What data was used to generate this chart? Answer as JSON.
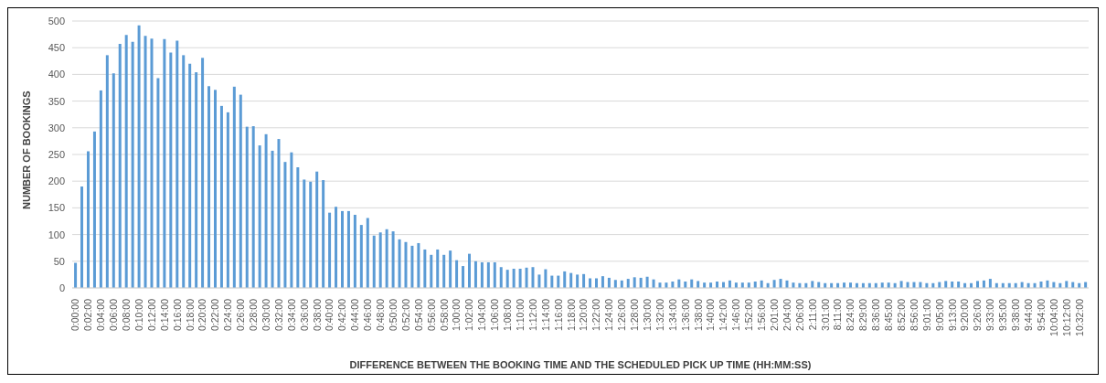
{
  "chart_data": {
    "type": "bar",
    "xlabel": "DIFFERENCE BETWEEN THE BOOKING TIME AND THE SCHEDULED PICK UP TIME (HH:MM:SS)",
    "ylabel": "NUMBER OF BOOKINGS",
    "categories": [
      "0:00:00",
      null,
      "0:02:00",
      null,
      "0:04:00",
      null,
      "0:06:00",
      null,
      "0:08:00",
      null,
      "0:10:00",
      null,
      "0:12:00",
      null,
      "0:14:00",
      null,
      "0:16:00",
      null,
      "0:18:00",
      null,
      "0:20:00",
      null,
      "0:22:00",
      null,
      "0:24:00",
      null,
      "0:26:00",
      null,
      "0:28:00",
      null,
      "0:30:00",
      null,
      "0:32:00",
      null,
      "0:34:00",
      null,
      "0:36:00",
      null,
      "0:38:00",
      null,
      "0:40:00",
      null,
      "0:42:00",
      null,
      "0:44:00",
      null,
      "0:46:00",
      null,
      "0:48:00",
      null,
      "0:50:00",
      null,
      "0:52:00",
      null,
      "0:54:00",
      null,
      "0:56:00",
      null,
      "0:58:00",
      null,
      "1:00:00",
      null,
      "1:02:00",
      null,
      "1:04:00",
      null,
      "1:06:00",
      null,
      "1:08:00",
      null,
      "1:10:00",
      null,
      "1:12:00",
      null,
      "1:14:00",
      null,
      "1:16:00",
      null,
      "1:18:00",
      null,
      "1:20:00",
      null,
      "1:22:00",
      null,
      "1:24:00",
      null,
      "1:26:00",
      null,
      "1:28:00",
      null,
      "1:30:00",
      null,
      "1:32:00",
      null,
      "1:34:00",
      null,
      "1:36:00",
      null,
      "1:38:00",
      null,
      "1:40:00",
      null,
      "1:42:00",
      null,
      "1:46:00",
      null,
      "1:52:00",
      null,
      "1:56:00",
      null,
      "2:01:00",
      null,
      "2:04:00",
      null,
      "2:06:00",
      null,
      "2:11:00",
      null,
      "3:01:00",
      null,
      "8:11:00",
      null,
      "8:24:00",
      null,
      "8:29:00",
      null,
      "8:36:00",
      null,
      "8:45:00",
      null,
      "8:52:00",
      null,
      "8:56:00",
      null,
      "9:01:00",
      null,
      "9:05:00",
      null,
      "9:13:00",
      null,
      "9:20:00",
      null,
      "9:26:00",
      null,
      "9:33:00",
      null,
      "9:35:00",
      null,
      "9:38:00",
      null,
      "9:44:00",
      null,
      "9:54:00",
      null,
      "10:04:00",
      null,
      "10:12:00",
      null,
      "10:32:00",
      null
    ],
    "values": [
      47,
      190,
      256,
      293,
      370,
      436,
      402,
      457,
      474,
      461,
      492,
      472,
      467,
      393,
      466,
      441,
      463,
      436,
      420,
      404,
      431,
      378,
      371,
      341,
      329,
      377,
      362,
      302,
      303,
      267,
      288,
      257,
      279,
      236,
      254,
      226,
      203,
      199,
      218,
      202,
      141,
      152,
      144,
      144,
      137,
      118,
      131,
      98,
      104,
      110,
      106,
      91,
      86,
      79,
      84,
      72,
      62,
      72,
      62,
      70,
      52,
      41,
      64,
      50,
      48,
      48,
      48,
      39,
      34,
      36,
      36,
      38,
      39,
      25,
      35,
      23,
      23,
      31,
      28,
      25,
      26,
      18,
      18,
      22,
      19,
      15,
      14,
      17,
      20,
      19,
      21,
      16,
      10,
      10,
      12,
      16,
      12,
      16,
      13,
      10,
      10,
      12,
      11,
      14,
      10,
      10,
      10,
      12,
      14,
      9,
      15,
      17,
      14,
      10,
      9,
      9,
      13,
      11,
      9,
      9,
      9,
      10,
      10,
      9,
      9,
      9,
      9,
      10,
      10,
      9,
      13,
      11,
      11,
      11,
      9,
      9,
      11,
      13,
      12,
      12,
      9,
      9,
      13,
      14,
      17,
      9,
      9,
      9,
      9,
      11,
      9,
      9,
      12,
      14,
      11,
      9,
      13,
      11,
      9,
      11
    ],
    "color": "#5b9bd5",
    "ylim": [
      0,
      500
    ],
    "yticks": [
      0,
      50,
      100,
      150,
      200,
      250,
      300,
      350,
      400,
      450,
      500
    ],
    "grid": "y"
  }
}
